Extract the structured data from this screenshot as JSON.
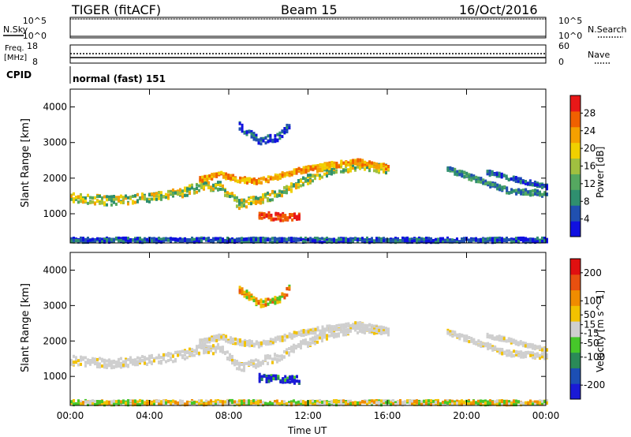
{
  "header": {
    "station": "TIGER (fitACF)",
    "beam": "Beam 15",
    "date": "16/Oct/2016"
  },
  "summary_panel": {
    "nsky_label": "N.Sky",
    "nsearch_label": "N.Search",
    "noise_ticks_left": [
      "10^5",
      "10^0"
    ],
    "noise_ticks_right": [
      "10^5",
      "10^0"
    ],
    "freq_label_line1": "Freq.",
    "freq_label_line2": "[MHz]",
    "freq_ticks": [
      "18",
      "8"
    ],
    "nave_label": "Nave",
    "nave_ticks": [
      "60",
      "0"
    ],
    "cpid_label": "CPID",
    "cpid_value": "normal (fast) 151"
  },
  "colors": {
    "power_scale": [
      "#1010e0",
      "#2050b0",
      "#2f8f6f",
      "#55a860",
      "#a0c040",
      "#f0d000",
      "#f5a000",
      "#f06000",
      "#e81818"
    ],
    "velocity_scale": [
      "#1a1ad6",
      "#1c4fb4",
      "#2a8a58",
      "#46c72a",
      "#cfcfcf",
      "#f2c200",
      "#f08c00",
      "#e85010",
      "#e01010"
    ]
  },
  "chart_data": [
    {
      "type": "heatmap",
      "title": "",
      "quantity": "Power",
      "xlabel": "Time UT",
      "ylabel": "Slant Range [km]",
      "x_ticks": [
        "00:00",
        "04:00",
        "08:00",
        "12:00",
        "16:00",
        "20:00",
        "00:00"
      ],
      "xlim_hours": [
        0,
        24
      ],
      "y_ticks": [
        1000,
        2000,
        3000,
        4000
      ],
      "ylim_km": [
        180,
        4500
      ],
      "colorbar": {
        "label": "Power [dB]",
        "ticks": [
          4,
          8,
          12,
          16,
          20,
          24,
          28
        ],
        "range": [
          0,
          32
        ]
      },
      "scatter_bands": [
        {
          "name": "main",
          "points": [
            [
              0.0,
              1500
            ],
            [
              2.0,
              1400
            ],
            [
              4.0,
              1500
            ],
            [
              5.5,
              1620
            ],
            [
              6.5,
              1800
            ],
            [
              7.5,
              1820
            ],
            [
              8.5,
              1300
            ],
            [
              9.5,
              1450
            ],
            [
              10.5,
              1600
            ],
            [
              11.5,
              1900
            ],
            [
              13.0,
              2250
            ],
            [
              14.5,
              2400
            ],
            [
              16.0,
              2300
            ]
          ],
          "width_km": 250,
          "intensity": "mid-high"
        },
        {
          "name": "upper",
          "points": [
            [
              6.5,
              2000
            ],
            [
              7.5,
              2150
            ],
            [
              8.5,
              2000
            ],
            [
              9.5,
              1950
            ],
            [
              10.5,
              2100
            ],
            [
              11.5,
              2250
            ],
            [
              13.0,
              2400
            ],
            [
              14.5,
              2500
            ],
            [
              16.0,
              2320
            ]
          ],
          "width_km": 150,
          "intensity": "high"
        },
        {
          "name": "low-patch",
          "points": [
            [
              9.5,
              1000
            ],
            [
              10.5,
              950
            ],
            [
              11.5,
              950
            ]
          ],
          "width_km": 200,
          "intensity": "very-high"
        },
        {
          "name": "high-arc",
          "points": [
            [
              8.5,
              3500
            ],
            [
              9.5,
              3100
            ],
            [
              10.5,
              3200
            ],
            [
              11.0,
              3500
            ]
          ],
          "width_km": 200,
          "intensity": "low"
        },
        {
          "name": "evening",
          "points": [
            [
              19.0,
              2300
            ],
            [
              20.5,
              2000
            ],
            [
              22.0,
              1700
            ],
            [
              24.0,
              1600
            ]
          ],
          "width_km": 150,
          "intensity": "low-mid"
        },
        {
          "name": "evening-2",
          "points": [
            [
              21.0,
              2200
            ],
            [
              22.5,
              2000
            ],
            [
              24.0,
              1800
            ]
          ],
          "width_km": 120,
          "intensity": "low"
        },
        {
          "name": "ground",
          "points": [
            [
              0.0,
              300
            ],
            [
              24.0,
              300
            ]
          ],
          "width_km": 120,
          "intensity": "low"
        }
      ]
    },
    {
      "type": "heatmap",
      "title": "",
      "quantity": "Velocity",
      "xlabel": "Time UT",
      "ylabel": "Slant Range [km]",
      "x_ticks": [
        "00:00",
        "04:00",
        "08:00",
        "12:00",
        "16:00",
        "20:00",
        "00:00"
      ],
      "xlim_hours": [
        0,
        24
      ],
      "y_ticks": [
        1000,
        2000,
        3000,
        4000
      ],
      "ylim_km": [
        180,
        4500
      ],
      "colorbar": {
        "label": "Velocity [m s^-1]",
        "ticks": [
          200,
          100,
          50,
          15,
          -15,
          -50,
          -100,
          -200
        ],
        "range": [
          -250,
          250
        ]
      },
      "scatter_bands": [
        {
          "name": "main",
          "points": [
            [
              0.0,
              1500
            ],
            [
              2.0,
              1400
            ],
            [
              4.0,
              1500
            ],
            [
              5.5,
              1620
            ],
            [
              6.5,
              1800
            ],
            [
              7.5,
              1820
            ],
            [
              8.5,
              1300
            ],
            [
              9.5,
              1450
            ],
            [
              10.5,
              1600
            ],
            [
              11.5,
              1900
            ],
            [
              13.0,
              2250
            ],
            [
              14.5,
              2400
            ],
            [
              16.0,
              2300
            ]
          ],
          "width_km": 250,
          "intensity": "near-zero"
        },
        {
          "name": "upper",
          "points": [
            [
              6.5,
              2000
            ],
            [
              7.5,
              2150
            ],
            [
              8.5,
              2000
            ],
            [
              9.5,
              1950
            ],
            [
              10.5,
              2100
            ],
            [
              11.5,
              2250
            ],
            [
              13.0,
              2400
            ],
            [
              14.5,
              2500
            ],
            [
              16.0,
              2320
            ]
          ],
          "width_km": 150,
          "intensity": "near-zero"
        },
        {
          "name": "low-patch",
          "points": [
            [
              9.5,
              1000
            ],
            [
              10.5,
              950
            ],
            [
              11.5,
              950
            ]
          ],
          "width_km": 200,
          "intensity": "toward-strong"
        },
        {
          "name": "high-arc",
          "points": [
            [
              8.5,
              3500
            ],
            [
              9.5,
              3100
            ],
            [
              10.5,
              3200
            ],
            [
              11.0,
              3500
            ]
          ],
          "width_km": 200,
          "intensity": "away-mixed"
        },
        {
          "name": "evening",
          "points": [
            [
              19.0,
              2300
            ],
            [
              20.5,
              2000
            ],
            [
              22.0,
              1700
            ],
            [
              24.0,
              1600
            ]
          ],
          "width_km": 150,
          "intensity": "near-zero"
        },
        {
          "name": "evening-2",
          "points": [
            [
              21.0,
              2200
            ],
            [
              22.5,
              2000
            ],
            [
              24.0,
              1800
            ]
          ],
          "width_km": 120,
          "intensity": "near-zero"
        },
        {
          "name": "ground",
          "points": [
            [
              0.0,
              300
            ],
            [
              24.0,
              300
            ]
          ],
          "width_km": 120,
          "intensity": "mixed-low"
        }
      ]
    }
  ]
}
